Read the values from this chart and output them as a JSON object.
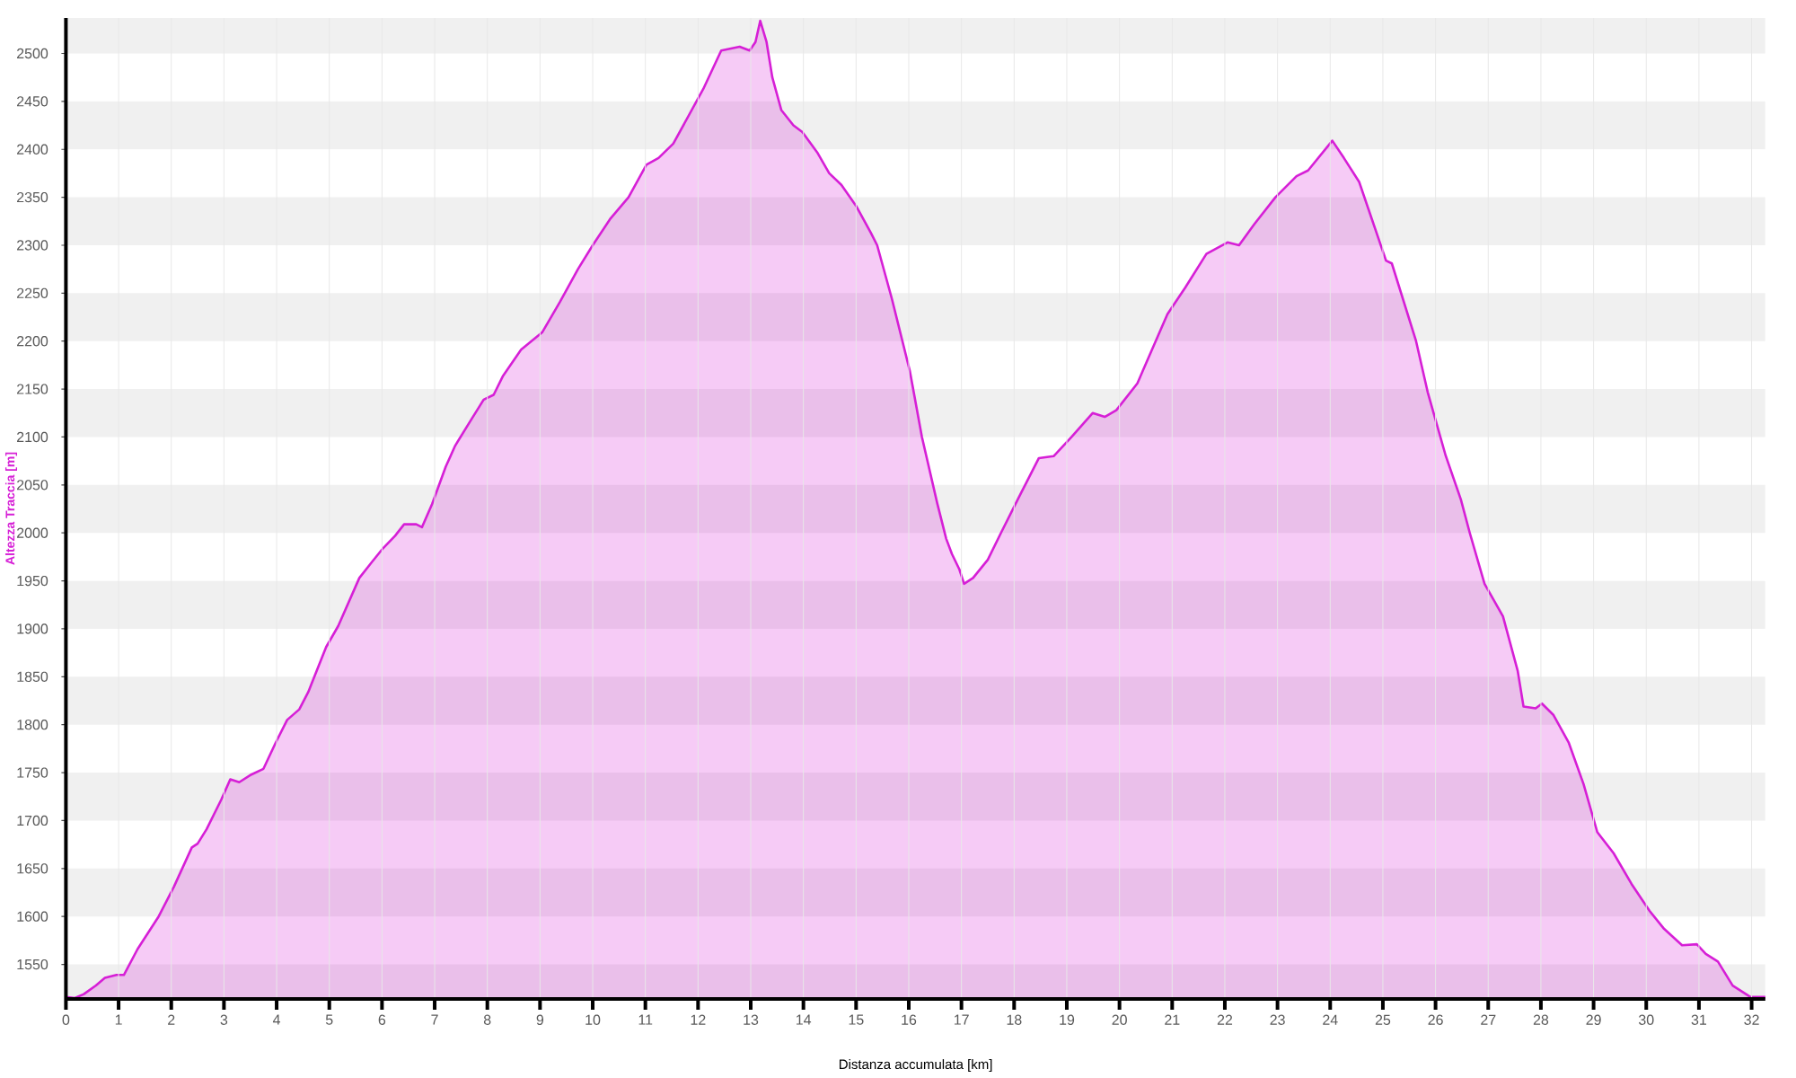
{
  "chart_data": {
    "type": "area",
    "xlabel": "Distanza accumulata [km]",
    "ylabel": "Altezza Traccia [m]",
    "color": "#d61fd6",
    "x": [
      0,
      0.17,
      0.34,
      0.57,
      0.74,
      0.96,
      1.1,
      1.36,
      1.76,
      2.05,
      2.39,
      2.5,
      2.67,
      2.95,
      3.12,
      3.29,
      3.52,
      3.75,
      3.98,
      4.2,
      4.43,
      4.6,
      4.94,
      5.17,
      5.57,
      5.8,
      6.02,
      6.25,
      6.42,
      6.65,
      6.76,
      6.95,
      7.21,
      7.39,
      7.67,
      7.93,
      8.12,
      8.3,
      8.64,
      9.04,
      9.38,
      9.72,
      10.0,
      10.34,
      10.68,
      11.02,
      11.25,
      11.53,
      12.1,
      12.44,
      12.79,
      12.98,
      13.09,
      13.18,
      13.3,
      13.41,
      13.58,
      13.81,
      13.98,
      14.26,
      14.49,
      14.72,
      15.0,
      15.28,
      15.4,
      15.68,
      16.02,
      16.25,
      16.54,
      16.71,
      16.82,
      16.96,
      17.05,
      17.22,
      17.5,
      17.75,
      18.07,
      18.47,
      18.75,
      19.09,
      19.49,
      19.72,
      19.94,
      20.34,
      20.91,
      21.25,
      21.65,
      22.05,
      22.27,
      22.56,
      22.96,
      23.36,
      23.58,
      24.04,
      24.26,
      24.55,
      25.06,
      25.17,
      25.63,
      25.85,
      26.19,
      26.48,
      26.65,
      26.93,
      27.28,
      27.56,
      27.67,
      27.9,
      28.02,
      28.24,
      28.53,
      28.81,
      29.07,
      29.38,
      29.72,
      30.06,
      30.34,
      30.68,
      30.96,
      31.13,
      31.36,
      31.64,
      31.98,
      32.26
    ],
    "values": [
      1516,
      1515,
      1519,
      1528,
      1536,
      1539,
      1539,
      1566,
      1600,
      1631,
      1672,
      1676,
      1691,
      1722,
      1743,
      1740,
      1748,
      1754,
      1781,
      1805,
      1816,
      1834,
      1881,
      1903,
      1953,
      1969,
      1984,
      1997,
      2009,
      2009,
      2006,
      2030,
      2069,
      2091,
      2116,
      2139,
      2144,
      2164,
      2191,
      2209,
      2241,
      2275,
      2300,
      2328,
      2350,
      2384,
      2391,
      2406,
      2463,
      2503,
      2507,
      2503,
      2512,
      2534,
      2512,
      2475,
      2441,
      2425,
      2418,
      2397,
      2375,
      2363,
      2341,
      2313,
      2300,
      2244,
      2169,
      2100,
      2031,
      1994,
      1978,
      1962,
      1947,
      1953,
      1972,
      2000,
      2035,
      2078,
      2080,
      2100,
      2125,
      2121,
      2128,
      2156,
      2228,
      2256,
      2291,
      2303,
      2300,
      2322,
      2350,
      2372,
      2378,
      2409,
      2391,
      2366,
      2284,
      2281,
      2200,
      2147,
      2081,
      2035,
      2000,
      1947,
      1913,
      1856,
      1819,
      1817,
      1822,
      1810,
      1781,
      1738,
      1688,
      1666,
      1634,
      1606,
      1587,
      1570,
      1571,
      1561,
      1553,
      1528,
      1516,
      1516
    ],
    "xlim": [
      0,
      32.26
    ],
    "ylim": [
      1514,
      2537
    ],
    "xticks": [
      0,
      1,
      2,
      3,
      4,
      5,
      6,
      7,
      8,
      9,
      10,
      11,
      12,
      13,
      14,
      15,
      16,
      17,
      18,
      19,
      20,
      21,
      22,
      23,
      24,
      25,
      26,
      27,
      28,
      29,
      30,
      31,
      32
    ],
    "yticks": [
      1550,
      1600,
      1650,
      1700,
      1750,
      1800,
      1850,
      1900,
      1950,
      2000,
      2050,
      2100,
      2150,
      2200,
      2250,
      2300,
      2350,
      2400,
      2450,
      2500
    ],
    "grid": true
  }
}
